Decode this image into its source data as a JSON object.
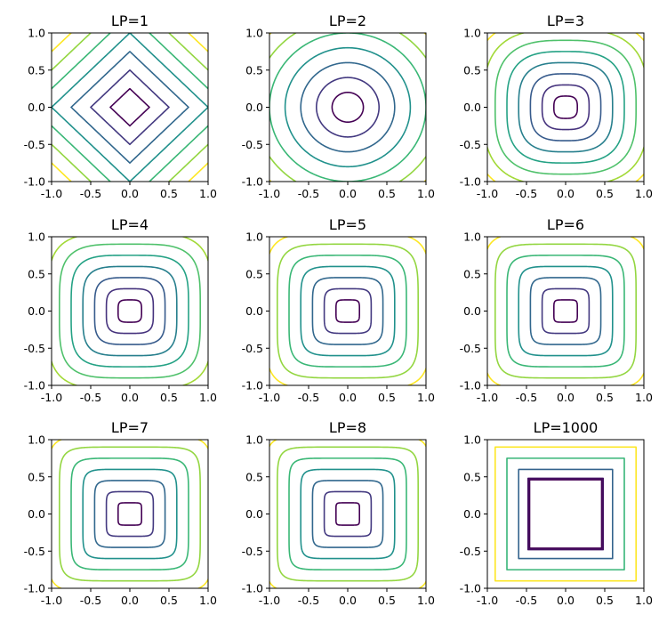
{
  "chart_data": [
    {
      "type": "contour",
      "title": "LP=1",
      "p": 1,
      "xlim": [
        -1,
        1
      ],
      "ylim": [
        -1,
        1
      ],
      "xticks": [
        "-1.0",
        "-0.5",
        "0.0",
        "0.5",
        "1.0"
      ],
      "yticks": [
        "-1.0",
        "-0.5",
        "0.0",
        "0.5",
        "1.0"
      ],
      "levels": [
        0.25,
        0.5,
        0.75,
        1.0,
        1.25,
        1.5,
        1.75
      ]
    },
    {
      "type": "contour",
      "title": "LP=2",
      "p": 2,
      "xlim": [
        -1,
        1
      ],
      "ylim": [
        -1,
        1
      ],
      "xticks": [
        "-1.0",
        "-0.5",
        "0.0",
        "0.5",
        "1.0"
      ],
      "yticks": [
        "-1.0",
        "-0.5",
        "0.0",
        "0.5",
        "1.0"
      ],
      "levels": [
        0.2,
        0.4,
        0.6,
        0.8,
        1.0,
        1.2,
        1.4
      ]
    },
    {
      "type": "contour",
      "title": "LP=3",
      "p": 3,
      "xlim": [
        -1,
        1
      ],
      "ylim": [
        -1,
        1
      ],
      "xticks": [
        "-1.0",
        "-0.5",
        "0.0",
        "0.5",
        "1.0"
      ],
      "yticks": [
        "-1.0",
        "-0.5",
        "0.0",
        "0.5",
        "1.0"
      ],
      "levels": [
        0.15,
        0.3,
        0.45,
        0.6,
        0.75,
        0.9,
        1.05,
        1.2
      ]
    },
    {
      "type": "contour",
      "title": "LP=4",
      "p": 4,
      "xlim": [
        -1,
        1
      ],
      "ylim": [
        -1,
        1
      ],
      "xticks": [
        "-1.0",
        "-0.5",
        "0.0",
        "0.5",
        "1.0"
      ],
      "yticks": [
        "-1.0",
        "-0.5",
        "0.0",
        "0.5",
        "1.0"
      ],
      "levels": [
        0.15,
        0.3,
        0.45,
        0.6,
        0.75,
        0.9,
        1.05,
        1.2
      ]
    },
    {
      "type": "contour",
      "title": "LP=5",
      "p": 5,
      "xlim": [
        -1,
        1
      ],
      "ylim": [
        -1,
        1
      ],
      "xticks": [
        "-1.0",
        "-0.5",
        "0.0",
        "0.5",
        "1.0"
      ],
      "yticks": [
        "-1.0",
        "-0.5",
        "0.0",
        "0.5",
        "1.0"
      ],
      "levels": [
        0.15,
        0.3,
        0.45,
        0.6,
        0.75,
        0.9,
        1.05
      ]
    },
    {
      "type": "contour",
      "title": "LP=6",
      "p": 6,
      "xlim": [
        -1,
        1
      ],
      "ylim": [
        -1,
        1
      ],
      "xticks": [
        "-1.0",
        "-0.5",
        "0.0",
        "0.5",
        "1.0"
      ],
      "yticks": [
        "-1.0",
        "-0.5",
        "0.0",
        "0.5",
        "1.0"
      ],
      "levels": [
        0.15,
        0.3,
        0.45,
        0.6,
        0.75,
        0.9,
        1.05
      ]
    },
    {
      "type": "contour",
      "title": "LP=7",
      "p": 7,
      "xlim": [
        -1,
        1
      ],
      "ylim": [
        -1,
        1
      ],
      "xticks": [
        "-1.0",
        "-0.5",
        "0.0",
        "0.5",
        "1.0"
      ],
      "yticks": [
        "-1.0",
        "-0.5",
        "0.0",
        "0.5",
        "1.0"
      ],
      "levels": [
        0.15,
        0.3,
        0.45,
        0.6,
        0.75,
        0.9,
        1.05
      ]
    },
    {
      "type": "contour",
      "title": "LP=8",
      "p": 8,
      "xlim": [
        -1,
        1
      ],
      "ylim": [
        -1,
        1
      ],
      "xticks": [
        "-1.0",
        "-0.5",
        "0.0",
        "0.5",
        "1.0"
      ],
      "yticks": [
        "-1.0",
        "-0.5",
        "0.0",
        "0.5",
        "1.0"
      ],
      "levels": [
        0.15,
        0.3,
        0.45,
        0.6,
        0.75,
        0.9,
        1.05
      ]
    },
    {
      "type": "contour",
      "title": "LP=1000",
      "p": 1000,
      "xlim": [
        -1,
        1
      ],
      "ylim": [
        -1,
        1
      ],
      "xticks": [
        "-1.0",
        "-0.5",
        "0.0",
        "0.5",
        "1.0"
      ],
      "yticks": [
        "-1.0",
        "-0.5",
        "0.0",
        "0.5",
        "1.0"
      ],
      "levels": [
        0.46,
        0.47,
        0.48,
        0.6,
        0.75,
        0.9
      ]
    }
  ],
  "colormap": [
    "#440154",
    "#472d7b",
    "#3b528b",
    "#2c728e",
    "#21918c",
    "#28ae80",
    "#5ec962",
    "#addc30",
    "#fde725"
  ]
}
